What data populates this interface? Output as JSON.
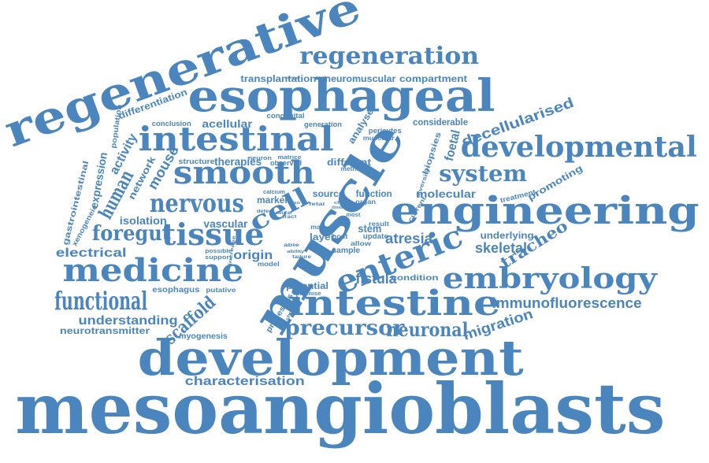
{
  "cloud": {
    "color": "#4a85bd",
    "words": [
      {
        "text": "mesoangioblasts"
      },
      {
        "text": "development"
      },
      {
        "text": "muscle"
      },
      {
        "text": "regenerative"
      },
      {
        "text": "esophageal"
      },
      {
        "text": "engineering"
      },
      {
        "text": "intestine"
      },
      {
        "text": "intestinal"
      },
      {
        "text": "developmental"
      },
      {
        "text": "embryology"
      },
      {
        "text": "smooth"
      },
      {
        "text": "regeneration"
      },
      {
        "text": "medicine"
      },
      {
        "text": "enteric"
      },
      {
        "text": "functional"
      },
      {
        "text": "tissue"
      },
      {
        "text": "nervous"
      },
      {
        "text": "cell"
      },
      {
        "text": "system"
      },
      {
        "text": "precursor"
      },
      {
        "text": "neuronal"
      },
      {
        "text": "foregut"
      },
      {
        "text": "human"
      },
      {
        "text": "decellularised"
      },
      {
        "text": "immunofluorescence"
      },
      {
        "text": "characterisation"
      },
      {
        "text": "scaffold"
      },
      {
        "text": "tracheo"
      },
      {
        "text": "atresia"
      },
      {
        "text": "skeletal"
      },
      {
        "text": "fistula"
      },
      {
        "text": "migration"
      },
      {
        "text": "understanding"
      },
      {
        "text": "electrical"
      },
      {
        "text": "origin"
      },
      {
        "text": "transplantation"
      },
      {
        "text": "neuromuscular"
      },
      {
        "text": "compartment"
      },
      {
        "text": "molecular"
      },
      {
        "text": "foetal"
      },
      {
        "text": "mouse"
      },
      {
        "text": "activity"
      },
      {
        "text": "expression"
      },
      {
        "text": "network"
      },
      {
        "text": "differentiation"
      },
      {
        "text": "isolation"
      },
      {
        "text": "vascular"
      },
      {
        "text": "neurotransmitter"
      },
      {
        "text": "gastrointestinal"
      },
      {
        "text": "stem"
      },
      {
        "text": "therapies"
      },
      {
        "text": "acellular"
      },
      {
        "text": "considerable"
      },
      {
        "text": "promoting"
      },
      {
        "text": "underlying"
      },
      {
        "text": "myogenesis"
      },
      {
        "text": "esophagus"
      },
      {
        "text": "analyse"
      },
      {
        "text": "different"
      },
      {
        "text": "function"
      },
      {
        "text": "source"
      },
      {
        "text": "marker"
      },
      {
        "text": "layer"
      },
      {
        "text": "sample"
      },
      {
        "text": "condition"
      },
      {
        "text": "potential"
      },
      {
        "text": "processes"
      },
      {
        "text": "biopsies"
      },
      {
        "text": "structure"
      },
      {
        "text": "population"
      },
      {
        "text": "xenogeneic"
      },
      {
        "text": "conclusion"
      },
      {
        "text": "congenital"
      },
      {
        "text": "generation"
      },
      {
        "text": "pericytes"
      },
      {
        "text": "muscular"
      },
      {
        "text": "observed"
      },
      {
        "text": "treatment"
      },
      {
        "text": "current"
      },
      {
        "text": "diversity"
      },
      {
        "text": "method"
      },
      {
        "text": "organ"
      },
      {
        "text": "neuron"
      },
      {
        "text": "matrice"
      },
      {
        "text": "calcium"
      },
      {
        "text": "fetal"
      },
      {
        "text": "mab"
      },
      {
        "text": "host"
      },
      {
        "text": "most"
      },
      {
        "text": "update"
      },
      {
        "text": "allow"
      },
      {
        "text": "result"
      },
      {
        "text": "increase"
      },
      {
        "text": "possible"
      },
      {
        "text": "support"
      },
      {
        "text": "model"
      },
      {
        "text": "able"
      },
      {
        "text": "failure"
      },
      {
        "text": "ability"
      },
      {
        "text": "putative"
      },
      {
        "text": "promise"
      },
      {
        "text": "shortage"
      },
      {
        "text": "tract"
      },
      {
        "text": "defect"
      },
      {
        "text": "neural"
      },
      {
        "text": "also"
      },
      {
        "text": "child"
      },
      {
        "text": "disease"
      },
      {
        "text": "body"
      },
      {
        "text": "living"
      }
    ]
  }
}
